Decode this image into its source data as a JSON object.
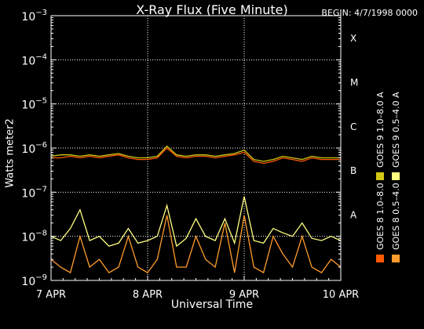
{
  "title": "X-Ray Flux (Five Minute)",
  "begin_label": "BEGIN: 4/7/1998 0000",
  "colors": {
    "background": "#000000",
    "axes": "#ffffff",
    "goes8_long": "#ff5a00",
    "goes8_short": "#ff9c2a",
    "goes9_long": "#d2c814",
    "goes9_short": "#ffff80"
  },
  "chart_data": {
    "type": "line",
    "title": "X-Ray Flux (Five Minute)",
    "xlabel": "Universal Time",
    "ylabel": "Watts meter2",
    "yscale": "log",
    "ylim": [
      1e-09,
      0.001
    ],
    "y_ticks": [
      {
        "value": 1e-09,
        "label": "10−9"
      },
      {
        "value": 1e-08,
        "label": "10−8"
      },
      {
        "value": 1e-07,
        "label": "10−7"
      },
      {
        "value": 1e-06,
        "label": "10−6"
      },
      {
        "value": 1e-05,
        "label": "10−5"
      },
      {
        "value": 0.0001,
        "label": "10−4"
      },
      {
        "value": 0.001,
        "label": "10−3"
      }
    ],
    "xlim": [
      0,
      3
    ],
    "x_ticks": [
      {
        "value": 0,
        "label": "7 APR"
      },
      {
        "value": 1,
        "label": "8 APR"
      },
      {
        "value": 2,
        "label": "9 APR"
      },
      {
        "value": 3,
        "label": "10 APR"
      }
    ],
    "flare_classes": [
      {
        "label": "A",
        "value": 3.16e-08
      },
      {
        "label": "B",
        "value": 3.16e-07
      },
      {
        "label": "C",
        "value": 3.16e-06
      },
      {
        "label": "M",
        "value": 3.16e-05
      },
      {
        "label": "X",
        "value": 0.000316
      }
    ],
    "grid": true,
    "legend_position": "right (vertical)",
    "series": [
      {
        "name": "GOES 8 1.0–8.0 A",
        "color": "#ff5a00",
        "x": [
          0,
          0.1,
          0.2,
          0.3,
          0.4,
          0.5,
          0.6,
          0.7,
          0.8,
          0.9,
          1.0,
          1.1,
          1.2,
          1.3,
          1.4,
          1.5,
          1.6,
          1.7,
          1.8,
          1.9,
          2.0,
          2.1,
          2.2,
          2.3,
          2.4,
          2.5,
          2.6,
          2.7,
          2.8,
          2.9,
          3.0
        ],
        "y": [
          6e-07,
          6e-07,
          6.5e-07,
          6e-07,
          6.5e-07,
          6e-07,
          6.5e-07,
          7e-07,
          6e-07,
          5.5e-07,
          5.5e-07,
          6e-07,
          1e-06,
          6.5e-07,
          6e-07,
          6.5e-07,
          6.5e-07,
          6e-07,
          6.5e-07,
          7e-07,
          8e-07,
          5e-07,
          4.5e-07,
          5e-07,
          6e-07,
          5.5e-07,
          5e-07,
          6e-07,
          5.5e-07,
          5.5e-07,
          5.5e-07
        ]
      },
      {
        "name": "GOES 8 0.5–4.0 A",
        "color": "#ff9c2a",
        "x": [
          0,
          0.1,
          0.2,
          0.3,
          0.4,
          0.5,
          0.6,
          0.7,
          0.8,
          0.9,
          1.0,
          1.1,
          1.2,
          1.3,
          1.4,
          1.5,
          1.6,
          1.7,
          1.8,
          1.9,
          2.0,
          2.1,
          2.2,
          2.3,
          2.4,
          2.5,
          2.6,
          2.7,
          2.8,
          2.9,
          3.0
        ],
        "y": [
          3e-09,
          2e-09,
          1.5e-09,
          1e-08,
          2e-09,
          3e-09,
          1.5e-09,
          2e-09,
          1e-08,
          2e-09,
          1.5e-09,
          3e-09,
          3e-08,
          2e-09,
          2e-09,
          1e-08,
          3e-09,
          2e-09,
          2e-08,
          1.5e-09,
          3e-08,
          2e-09,
          1.5e-09,
          1e-08,
          4e-09,
          2e-09,
          1e-08,
          2e-09,
          1.5e-09,
          3e-09,
          2e-09
        ]
      },
      {
        "name": "GOES 9 1.0–8.0 A",
        "color": "#d2c814",
        "x": [
          0,
          0.1,
          0.2,
          0.3,
          0.4,
          0.5,
          0.6,
          0.7,
          0.8,
          0.9,
          1.0,
          1.1,
          1.2,
          1.3,
          1.4,
          1.5,
          1.6,
          1.7,
          1.8,
          1.9,
          2.0,
          2.1,
          2.2,
          2.3,
          2.4,
          2.5,
          2.6,
          2.7,
          2.8,
          2.9,
          3.0
        ],
        "y": [
          6.5e-07,
          7e-07,
          7e-07,
          6.5e-07,
          7e-07,
          6.5e-07,
          7e-07,
          7.5e-07,
          6.5e-07,
          6e-07,
          6e-07,
          6.5e-07,
          1.1e-06,
          7e-07,
          6.5e-07,
          7e-07,
          7e-07,
          6.5e-07,
          7e-07,
          7.5e-07,
          9e-07,
          5.5e-07,
          5e-07,
          5.5e-07,
          6.5e-07,
          6e-07,
          5.5e-07,
          6.5e-07,
          6e-07,
          6e-07,
          6e-07
        ]
      },
      {
        "name": "GOES 9 0.5–4.0 A",
        "color": "#ffff80",
        "x": [
          0,
          0.1,
          0.2,
          0.3,
          0.4,
          0.5,
          0.6,
          0.7,
          0.8,
          0.9,
          1.0,
          1.1,
          1.2,
          1.3,
          1.4,
          1.5,
          1.6,
          1.7,
          1.8,
          1.9,
          2.0,
          2.1,
          2.2,
          2.3,
          2.4,
          2.5,
          2.6,
          2.7,
          2.8,
          2.9,
          3.0
        ],
        "y": [
          1e-08,
          8e-09,
          1.5e-08,
          4e-08,
          8e-09,
          1e-08,
          6e-09,
          7e-09,
          1.5e-08,
          7e-09,
          8e-09,
          1e-08,
          5e-08,
          6e-09,
          9e-09,
          2.5e-08,
          1e-08,
          8e-09,
          2.5e-08,
          7e-09,
          8e-08,
          8e-09,
          7e-09,
          1.5e-08,
          1.2e-08,
          1e-08,
          2e-08,
          9e-09,
          8e-09,
          1e-08,
          8e-09
        ]
      }
    ]
  }
}
